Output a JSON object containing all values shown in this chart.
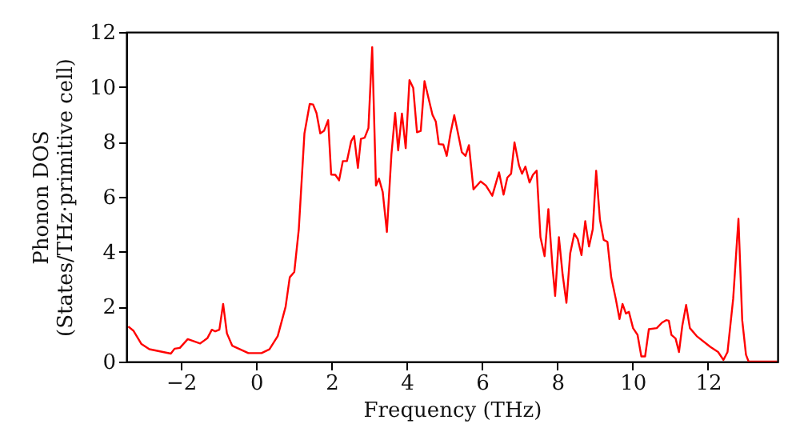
{
  "chart_data": {
    "type": "line",
    "xlabel": "Frequency (THz)",
    "ylabel": "Phonon DOS\n(States/THz·primitive cell)",
    "xlim": [
      -3.45,
      13.85
    ],
    "ylim": [
      0,
      12
    ],
    "xticks": [
      -2,
      0,
      2,
      4,
      6,
      8,
      10,
      12
    ],
    "yticks": [
      0,
      2,
      4,
      6,
      8,
      10,
      12
    ],
    "grid": false,
    "line_style": "solid",
    "marker": "none",
    "x": [
      -3.4,
      -3.26,
      -3.05,
      -2.84,
      -2.27,
      -2.17,
      -2.03,
      -1.82,
      -1.49,
      -1.3,
      -1.18,
      -1.09,
      -0.98,
      -0.88,
      -0.78,
      -0.64,
      -0.21,
      0.14,
      0.35,
      0.57,
      0.78,
      0.89,
      1.01,
      1.13,
      1.28,
      1.42,
      1.51,
      1.6,
      1.7,
      1.8,
      1.91,
      1.99,
      2.1,
      2.2,
      2.3,
      2.41,
      2.52,
      2.6,
      2.7,
      2.78,
      2.88,
      2.98,
      3.08,
      3.18,
      3.26,
      3.36,
      3.47,
      3.59,
      3.69,
      3.77,
      3.87,
      3.97,
      4.07,
      4.17,
      4.27,
      4.37,
      4.47,
      4.58,
      4.68,
      4.77,
      4.85,
      4.97,
      5.06,
      5.16,
      5.26,
      5.36,
      5.46,
      5.56,
      5.65,
      5.77,
      5.96,
      6.1,
      6.27,
      6.45,
      6.57,
      6.67,
      6.77,
      6.86,
      6.98,
      7.06,
      7.15,
      7.26,
      7.35,
      7.45,
      7.55,
      7.66,
      7.76,
      7.87,
      7.94,
      8.04,
      8.14,
      8.24,
      8.34,
      8.45,
      8.54,
      8.64,
      8.74,
      8.84,
      8.94,
      9.03,
      9.13,
      9.23,
      9.33,
      9.43,
      9.55,
      9.65,
      9.73,
      9.82,
      9.9,
      10.01,
      10.13,
      10.23,
      10.33,
      10.43,
      10.64,
      10.78,
      10.89,
      10.96,
      11.03,
      11.14,
      11.23,
      11.32,
      11.42,
      11.52,
      11.7,
      12.06,
      12.27,
      12.41,
      12.52,
      12.67,
      12.81,
      12.91,
      13.01,
      13.08,
      13.83
    ],
    "series": [
      {
        "color": "#ff0000",
        "values": [
          1.28,
          1.12,
          0.64,
          0.45,
          0.29,
          0.47,
          0.5,
          0.82,
          0.66,
          0.85,
          1.16,
          1.1,
          1.16,
          2.1,
          1.03,
          0.58,
          0.31,
          0.31,
          0.45,
          0.93,
          2.0,
          3.07,
          3.26,
          4.82,
          8.31,
          9.38,
          9.36,
          9.05,
          8.31,
          8.4,
          8.79,
          6.81,
          6.8,
          6.6,
          7.3,
          7.3,
          8.02,
          8.21,
          7.05,
          8.11,
          8.15,
          8.5,
          11.45,
          6.41,
          6.66,
          6.17,
          4.72,
          7.53,
          9.05,
          7.69,
          9.03,
          7.77,
          10.25,
          9.96,
          8.35,
          8.4,
          10.21,
          9.57,
          8.99,
          8.74,
          7.92,
          7.9,
          7.49,
          8.31,
          8.97,
          8.31,
          7.63,
          7.49,
          7.88,
          6.27,
          6.56,
          6.41,
          6.04,
          6.89,
          6.08,
          6.7,
          6.84,
          7.98,
          7.14,
          6.84,
          7.1,
          6.52,
          6.8,
          6.95,
          4.53,
          3.84,
          5.55,
          3.45,
          2.39,
          4.53,
          3.16,
          2.14,
          3.94,
          4.66,
          4.46,
          3.88,
          5.11,
          4.19,
          4.82,
          6.95,
          5.17,
          4.43,
          4.36,
          3.07,
          2.29,
          1.55,
          2.1,
          1.75,
          1.81,
          1.22,
          0.97,
          0.19,
          0.19,
          1.18,
          1.22,
          1.42,
          1.51,
          1.49,
          0.97,
          0.84,
          0.35,
          1.32,
          2.06,
          1.22,
          0.93,
          0.54,
          0.35,
          0.06,
          0.35,
          2.29,
          5.2,
          1.51,
          0.25,
          0.0,
          0.0
        ]
      }
    ]
  }
}
